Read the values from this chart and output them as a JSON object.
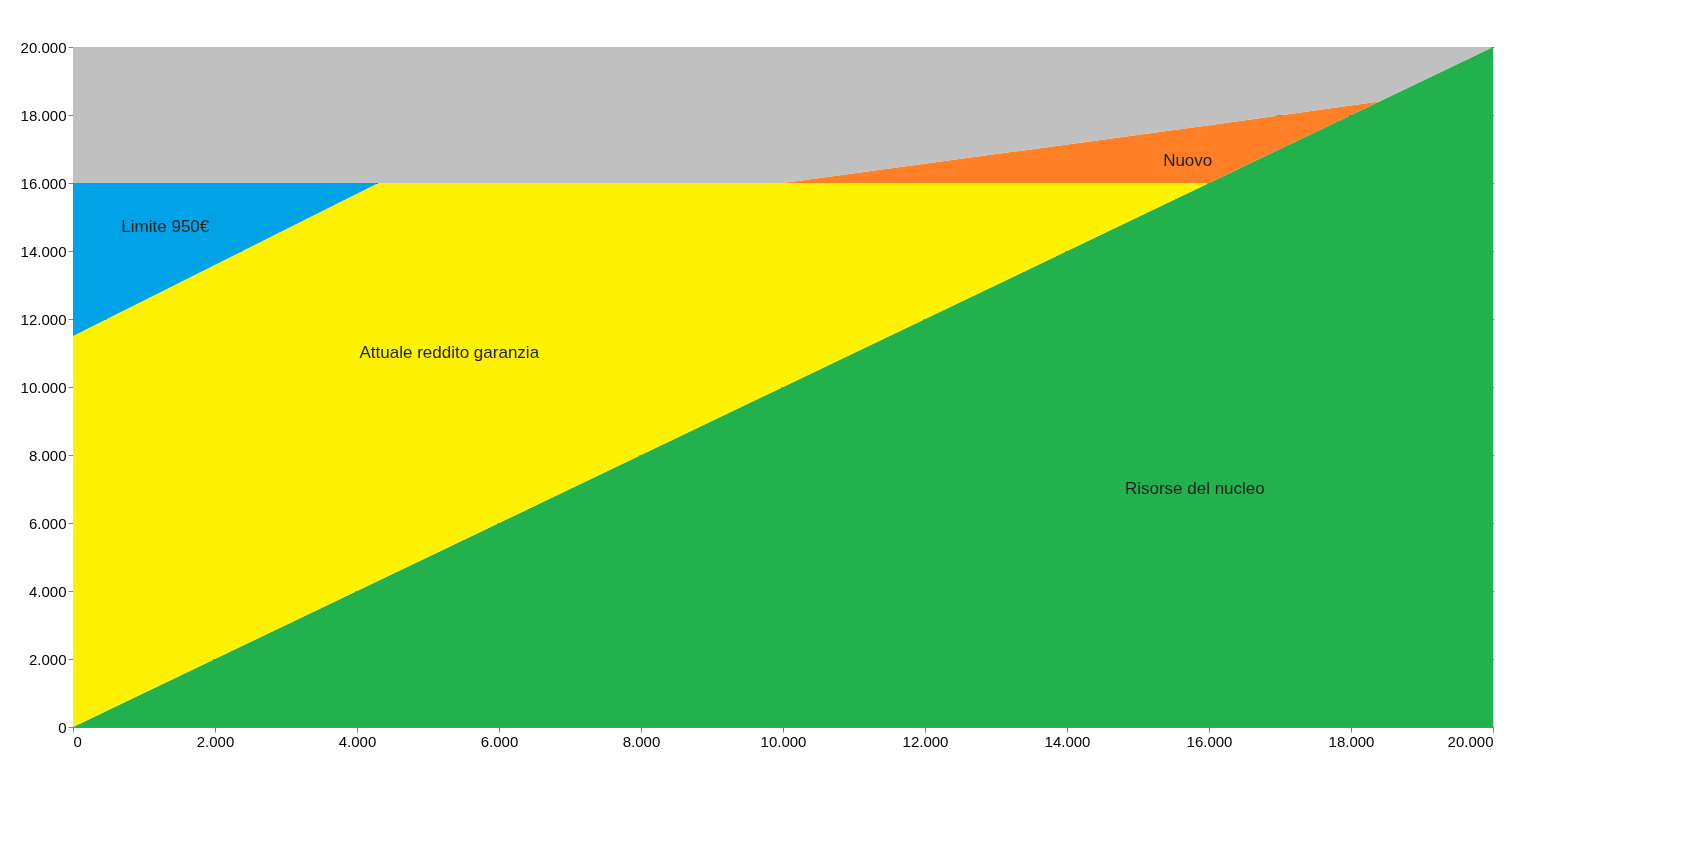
{
  "chart_data": {
    "type": "area",
    "stacked": true,
    "x": [
      0,
      4300,
      10000,
      16000,
      18400,
      20000
    ],
    "series": [
      {
        "color": "#22b14c",
        "values": [
          0,
          4300,
          10000,
          16000,
          18400,
          20000
        ]
      },
      {
        "color": "#fff200",
        "values": [
          11500,
          11700,
          6000,
          0,
          null,
          null
        ]
      },
      {
        "color": "#00a2e8",
        "values": [
          4500,
          0,
          null,
          null,
          null,
          null
        ]
      },
      {
        "color": "#ff7f27",
        "values": [
          null,
          null,
          0,
          1700,
          0,
          null
        ]
      },
      {
        "color": "#c0c0c0",
        "values": [
          4000,
          4000,
          4000,
          2300,
          1600,
          0
        ]
      }
    ],
    "xlim": [
      0,
      20000
    ],
    "ylim": [
      0,
      20000
    ],
    "xticks": [
      0,
      {
        "value": 2000,
        "label": "2.000"
      },
      {
        "value": 4000,
        "label": "4.000"
      },
      {
        "value": 6000,
        "label": "6.000"
      },
      {
        "value": 8000,
        "label": "8.000"
      },
      {
        "value": 10000,
        "label": "10.000"
      },
      {
        "value": 12000,
        "label": "12.000"
      },
      {
        "value": 14000,
        "label": "14.000"
      },
      {
        "value": 16000,
        "label": "16.000"
      },
      {
        "value": 18000,
        "label": "18.000"
      },
      {
        "value": 20000,
        "label": "20.000"
      }
    ],
    "yticks": [
      0,
      {
        "value": 2000,
        "label": "2.000"
      },
      {
        "value": 4000,
        "label": "4.000"
      },
      {
        "value": 6000,
        "label": "6.000"
      },
      {
        "value": 8000,
        "label": "8.000"
      },
      {
        "value": 10000,
        "label": "10.000"
      },
      {
        "value": 12000,
        "label": "12.000"
      },
      {
        "value": 14000,
        "label": "14.000"
      },
      {
        "value": 16000,
        "label": "16.000"
      },
      {
        "value": 18000,
        "label": "18.000"
      },
      {
        "value": 20000,
        "label": "20.000"
      }
    ],
    "grid": "y",
    "annotations": [
      "Limite 950€",
      "Attuale reddito garanzia",
      "Nuovo",
      "Risorse del  nucleo"
    ]
  }
}
